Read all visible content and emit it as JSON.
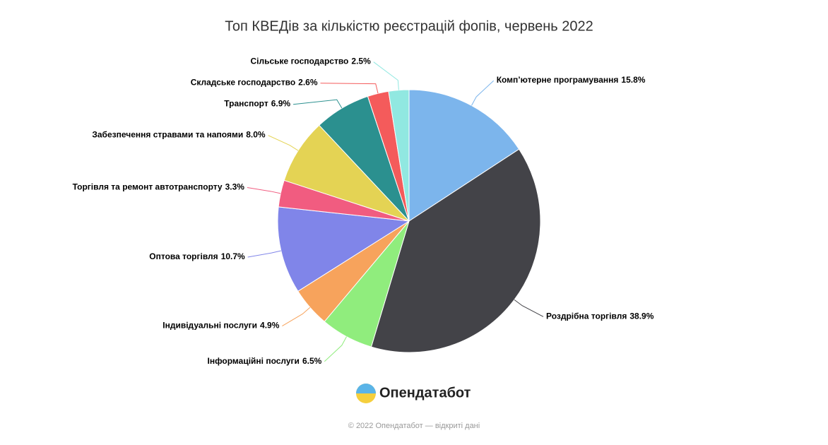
{
  "chart_data": {
    "type": "pie",
    "title": "Топ КВЕДів за кількістю реєстрацій фопів, червень 2022",
    "categories": [
      "Комп’ютерне програмування",
      "Роздрібна торгівля",
      "Інформаційні послуги",
      "Індивідуальні послуги",
      "Оптова торгівля",
      "Торгівля та ремонт автотранспорту",
      "Забезпечення стравами та напоями",
      "Транспорт",
      "Складське господарство",
      "Сільське господарство"
    ],
    "values": [
      15.8,
      38.9,
      6.5,
      4.9,
      10.7,
      3.3,
      8.0,
      6.9,
      2.6,
      2.5
    ],
    "value_labels": [
      "15.8%",
      "38.9%",
      "6.5%",
      "4.9%",
      "10.7%",
      "3.3%",
      "8.0%",
      "6.9%",
      "2.6%",
      "2.5%"
    ],
    "colors": [
      "#7cb5ec",
      "#434348",
      "#90ed7d",
      "#f7a35c",
      "#8085e9",
      "#f15c80",
      "#e4d354",
      "#2b908f",
      "#f45b5b",
      "#91e8e1"
    ]
  },
  "logo": "Опендатабот",
  "credits": "© 2022 Опендатабот — відкриті дані"
}
